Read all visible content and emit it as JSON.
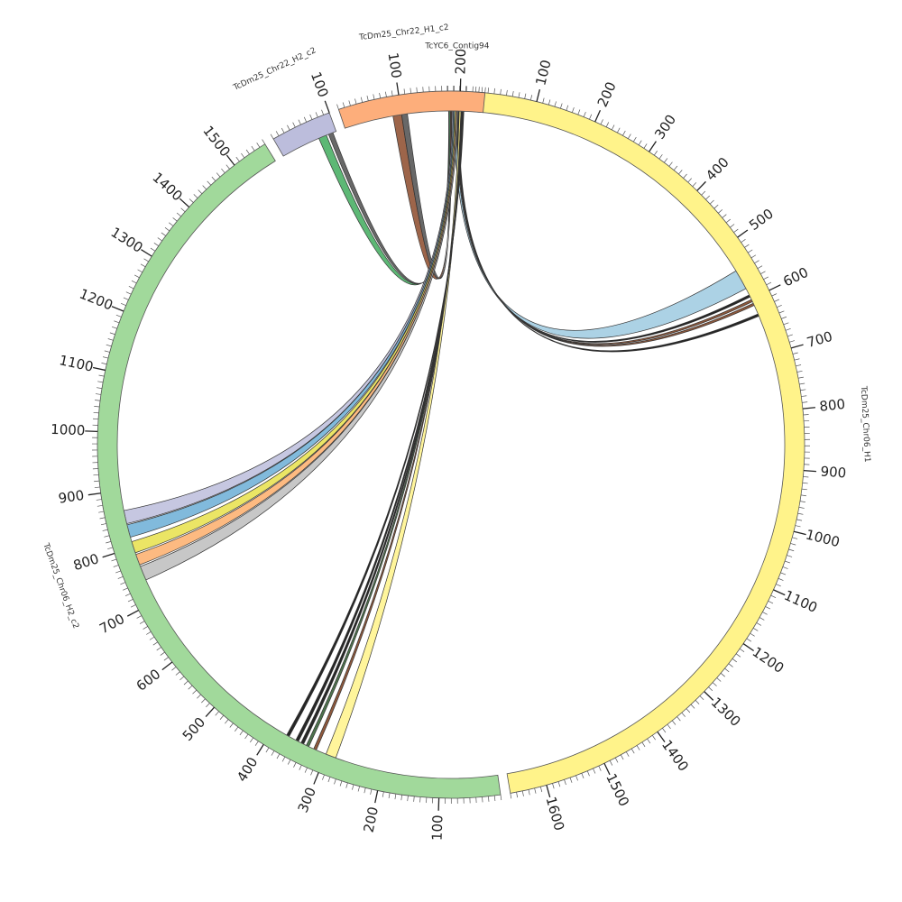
{
  "chart_data": {
    "type": "chord",
    "title": "",
    "segments": [
      {
        "name": "TcYC6_Contig94",
        "length": 30,
        "color": "#9ecae1",
        "tick_labels": []
      },
      {
        "name": "TcDm25_Chr06_H1",
        "length": 1660,
        "color": "#fff38a",
        "tick_labels": [
          "100",
          "200",
          "300",
          "400",
          "500",
          "600",
          "700",
          "800",
          "900",
          "1000",
          "1100",
          "1200",
          "1300",
          "1400",
          "1500",
          "1600"
        ]
      },
      {
        "name": "TcDm25_Chr06_H2_c2",
        "length": 1560,
        "color": "#a1d99b",
        "tick_labels": [
          "100",
          "200",
          "300",
          "400",
          "500",
          "600",
          "700",
          "800",
          "900",
          "1000",
          "1100",
          "1200",
          "1300",
          "1400",
          "1500"
        ]
      },
      {
        "name": "TcDm25_Chr22_H2_c2",
        "length": 100,
        "color": "#bcbddc",
        "tick_labels": [
          "100"
        ]
      },
      {
        "name": "TcDm25_Chr22_H1_c2",
        "length": 240,
        "color": "#fdae7b",
        "tick_labels": [
          "100",
          "200"
        ]
      }
    ],
    "links": [
      {
        "from": "TcYC6_Contig94",
        "from_range": [
          12,
          16
        ],
        "to": "TcDm25_Chr06_H1",
        "to_range": [
          545,
          580
        ],
        "color": "#9ecae1"
      },
      {
        "from": "TcYC6_Contig94",
        "from_range": [
          17,
          18
        ],
        "to": "TcDm25_Chr06_H1",
        "to_range": [
          592,
          596
        ],
        "color": "#000000"
      },
      {
        "from": "TcYC6_Contig94",
        "from_range": [
          18,
          19
        ],
        "to": "TcDm25_Chr06_H1",
        "to_range": [
          601,
          605
        ],
        "color": "#7a3b1a"
      },
      {
        "from": "TcYC6_Contig94",
        "from_range": [
          19,
          20
        ],
        "to": "TcDm25_Chr06_H1",
        "to_range": [
          608,
          612
        ],
        "color": "#7a3b1a"
      },
      {
        "from": "TcYC6_Contig94",
        "from_range": [
          20,
          21
        ],
        "to": "TcDm25_Chr06_H1",
        "to_range": [
          628,
          632
        ],
        "color": "#000000"
      },
      {
        "from": "TcYC6_Contig94",
        "from_range": [
          5,
          7
        ],
        "to": "TcDm25_Chr22_H1_c2",
        "to_range": [
          85,
          100
        ],
        "color": "#8c4a2a"
      },
      {
        "from": "TcYC6_Contig94",
        "from_range": [
          7,
          8
        ],
        "to": "TcDm25_Chr22_H1_c2",
        "to_range": [
          100,
          110
        ],
        "color": "#4d4d4d"
      },
      {
        "from": "TcYC6_Contig94",
        "from_range": [
          3,
          5
        ],
        "to": "TcDm25_Chr22_H2_c2",
        "to_range": [
          68,
          82
        ],
        "color": "#41ab5d"
      },
      {
        "from": "TcYC6_Contig94",
        "from_range": [
          2,
          3
        ],
        "to": "TcDm25_Chr22_H2_c2",
        "to_range": [
          86,
          94
        ],
        "color": "#4d4d4d"
      },
      {
        "from": "TcYC6_Contig94",
        "from_range": [
          8,
          10
        ],
        "to": "TcDm25_Chr06_H2_c2",
        "to_range": [
          842,
          865
        ],
        "color": "#bcbddc"
      },
      {
        "from": "TcYC6_Contig94",
        "from_range": [
          10,
          12
        ],
        "to": "TcDm25_Chr06_H2_c2",
        "to_range": [
          818,
          840
        ],
        "color": "#6baed6"
      },
      {
        "from": "TcYC6_Contig94",
        "from_range": [
          12,
          14
        ],
        "to": "TcDm25_Chr06_H2_c2",
        "to_range": [
          790,
          810
        ],
        "color": "#e8e04a"
      },
      {
        "from": "TcYC6_Contig94",
        "from_range": [
          14,
          16
        ],
        "to": "TcDm25_Chr06_H2_c2",
        "to_range": [
          768,
          787
        ],
        "color": "#fdae6b"
      },
      {
        "from": "TcYC6_Contig94",
        "from_range": [
          16,
          18
        ],
        "to": "TcDm25_Chr06_H2_c2",
        "to_range": [
          740,
          765
        ],
        "color": "#bdbdbd"
      },
      {
        "from": "TcYC6_Contig94",
        "from_range": [
          20,
          23
        ],
        "to": "TcDm25_Chr06_H2_c2",
        "to_range": [
          282,
          300
        ],
        "color": "#fff38a"
      },
      {
        "from": "TcYC6_Contig94",
        "from_range": [
          23,
          24
        ],
        "to": "TcDm25_Chr06_H2_c2",
        "to_range": [
          318,
          323
        ],
        "color": "#7a3b1a"
      },
      {
        "from": "TcYC6_Contig94",
        "from_range": [
          24,
          25
        ],
        "to": "TcDm25_Chr06_H2_c2",
        "to_range": [
          332,
          337
        ],
        "color": "#2d5a2d"
      },
      {
        "from": "TcYC6_Contig94",
        "from_range": [
          25,
          26
        ],
        "to": "TcDm25_Chr06_H2_c2",
        "to_range": [
          342,
          347
        ],
        "color": "#000000"
      },
      {
        "from": "TcYC6_Contig94",
        "from_range": [
          26,
          27
        ],
        "to": "TcDm25_Chr06_H2_c2",
        "to_range": [
          352,
          357
        ],
        "color": "#000000"
      },
      {
        "from": "TcYC6_Contig94",
        "from_range": [
          27,
          28
        ],
        "to": "TcDm25_Chr06_H2_c2",
        "to_range": [
          370,
          375
        ],
        "color": "#000000"
      }
    ]
  }
}
